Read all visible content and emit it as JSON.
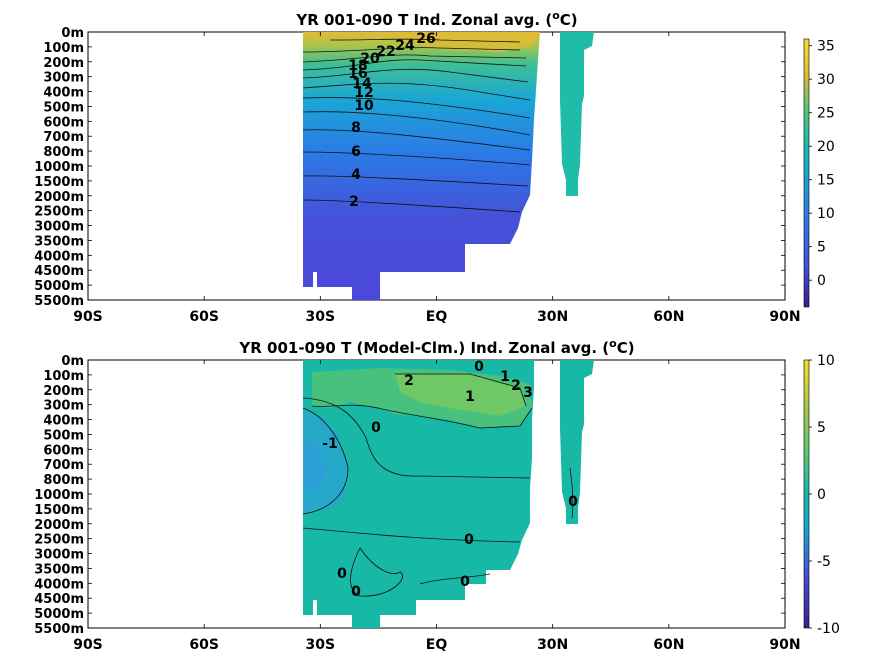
{
  "chart_data": [
    {
      "type": "heatmap",
      "title_main": "YR 001-090 T Ind. Zonal avg. (",
      "title_sup": "o",
      "title_tail": "C)",
      "depth_ticks": [
        "0m",
        "100m",
        "200m",
        "300m",
        "400m",
        "500m",
        "600m",
        "700m",
        "800m",
        "1000m",
        "1500m",
        "2000m",
        "2500m",
        "3000m",
        "3500m",
        "4000m",
        "4500m",
        "5000m",
        "5500m"
      ],
      "lat_ticks": [
        "90S",
        "60S",
        "30S",
        "EQ",
        "30N",
        "60N",
        "90N"
      ],
      "lat_values": [
        -90,
        -60,
        -30,
        0,
        30,
        60,
        90
      ],
      "colorbar": {
        "min": -4,
        "max": 36,
        "ticks": [
          35,
          30,
          25,
          20,
          15,
          10,
          5,
          0
        ]
      },
      "contour_labels": [
        "26",
        "24",
        "22",
        "20",
        "18",
        "16",
        "14",
        "12",
        "10",
        "8",
        "6",
        "4",
        "2"
      ],
      "colormap": [
        "#3a1f8f",
        "#4650d8",
        "#2b7be6",
        "#1aa7d4",
        "#1fbca9",
        "#5cc875",
        "#a8c54a",
        "#e3bb33",
        "#f6dd24"
      ]
    },
    {
      "type": "heatmap",
      "title_main": "YR 001-090 T (Model-Clm.) Ind. Zonal avg. (",
      "title_sup": "o",
      "title_tail": "C)",
      "depth_ticks": [
        "0m",
        "100m",
        "200m",
        "300m",
        "400m",
        "500m",
        "600m",
        "700m",
        "800m",
        "1000m",
        "1500m",
        "2000m",
        "2500m",
        "3000m",
        "3500m",
        "4000m",
        "4500m",
        "5000m",
        "5500m"
      ],
      "lat_ticks": [
        "90S",
        "60S",
        "30S",
        "EQ",
        "30N",
        "60N",
        "90N"
      ],
      "lat_values": [
        -90,
        -60,
        -30,
        0,
        30,
        60,
        90
      ],
      "colorbar": {
        "min": -10,
        "max": 10,
        "ticks": [
          10,
          5,
          0,
          -5,
          -10
        ]
      },
      "contour_labels": [
        "2",
        "1",
        "0",
        "1",
        "2",
        "3",
        "-1",
        "0",
        "0",
        "0",
        "0",
        "0",
        "0"
      ],
      "colormap": [
        "#3a1f8f",
        "#4650d8",
        "#2b7be6",
        "#1aa7d4",
        "#1fbca9",
        "#5cc875",
        "#a8c54a",
        "#e3bb33",
        "#f6dd24"
      ]
    }
  ]
}
